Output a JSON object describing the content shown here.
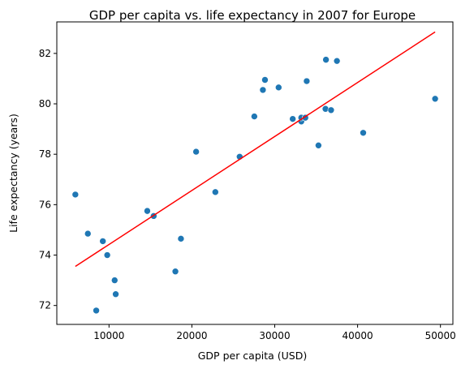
{
  "chart_data": {
    "type": "scatter",
    "title": "GDP per capita vs. life expectancy in 2007 for Europe",
    "xlabel": "GDP per capita (USD)",
    "ylabel": "Life expectancy (years)",
    "xlim": [
      3700,
      51500
    ],
    "ylim": [
      71.25,
      83.25
    ],
    "xticks": [
      10000,
      20000,
      30000,
      40000,
      50000
    ],
    "yticks": [
      72,
      74,
      76,
      78,
      80,
      82
    ],
    "grid": false,
    "point_color": "#1f77b4",
    "fit_color": "#ff0000",
    "points": [
      {
        "x": 5937,
        "y": 76.4
      },
      {
        "x": 7446,
        "y": 74.85
      },
      {
        "x": 9254,
        "y": 74.55
      },
      {
        "x": 9787,
        "y": 74.0
      },
      {
        "x": 10681,
        "y": 73.0
      },
      {
        "x": 10808,
        "y": 72.45
      },
      {
        "x": 8458,
        "y": 71.8
      },
      {
        "x": 14619,
        "y": 75.75
      },
      {
        "x": 15390,
        "y": 75.55
      },
      {
        "x": 18009,
        "y": 73.35
      },
      {
        "x": 18679,
        "y": 74.65
      },
      {
        "x": 20510,
        "y": 78.1
      },
      {
        "x": 22833,
        "y": 76.5
      },
      {
        "x": 25768,
        "y": 77.9
      },
      {
        "x": 27538,
        "y": 79.5
      },
      {
        "x": 28570,
        "y": 80.55
      },
      {
        "x": 28821,
        "y": 80.95
      },
      {
        "x": 30470,
        "y": 80.65
      },
      {
        "x": 32170,
        "y": 79.4
      },
      {
        "x": 33207,
        "y": 79.3
      },
      {
        "x": 33203,
        "y": 79.45
      },
      {
        "x": 33692,
        "y": 79.45
      },
      {
        "x": 33859,
        "y": 80.9
      },
      {
        "x": 35278,
        "y": 78.35
      },
      {
        "x": 36126,
        "y": 79.8
      },
      {
        "x": 36181,
        "y": 81.75
      },
      {
        "x": 36798,
        "y": 79.75
      },
      {
        "x": 37506,
        "y": 81.7
      },
      {
        "x": 40676,
        "y": 78.85
      },
      {
        "x": 49357,
        "y": 80.2
      }
    ],
    "fit_line": {
      "x": [
        5937,
        49357
      ],
      "y": [
        73.55,
        82.85
      ]
    }
  }
}
